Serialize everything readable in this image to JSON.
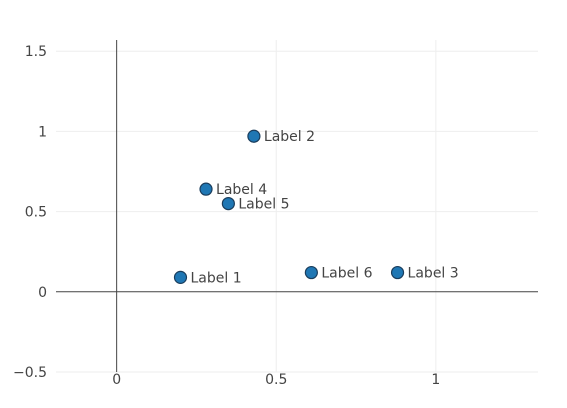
{
  "chart_data": {
    "type": "scatter",
    "title": "",
    "xlabel": "",
    "ylabel": "",
    "xlim": [
      -0.19,
      1.32
    ],
    "ylim": [
      -0.5,
      1.57
    ],
    "xticks": [
      0,
      0.5,
      1
    ],
    "xtick_labels": [
      "0",
      "0.5",
      "1"
    ],
    "yticks": [
      -0.5,
      0,
      0.5,
      1,
      1.5
    ],
    "ytick_labels": [
      "−0.5",
      "0",
      "0.5",
      "1",
      "1.5"
    ],
    "grid": true,
    "legend": false,
    "colors": {
      "marker_fill": "#1f77b4",
      "marker_stroke": "#1a3d5c",
      "grid": "#eeeeee",
      "zeroline": "#444444"
    },
    "points": [
      {
        "x": 0.2,
        "y": 0.09,
        "label": "Label 1"
      },
      {
        "x": 0.43,
        "y": 0.97,
        "label": "Label 2"
      },
      {
        "x": 0.88,
        "y": 0.12,
        "label": "Label 3"
      },
      {
        "x": 0.28,
        "y": 0.64,
        "label": "Label 4"
      },
      {
        "x": 0.35,
        "y": 0.55,
        "label": "Label 5"
      },
      {
        "x": 0.61,
        "y": 0.12,
        "label": "Label 6"
      }
    ]
  }
}
